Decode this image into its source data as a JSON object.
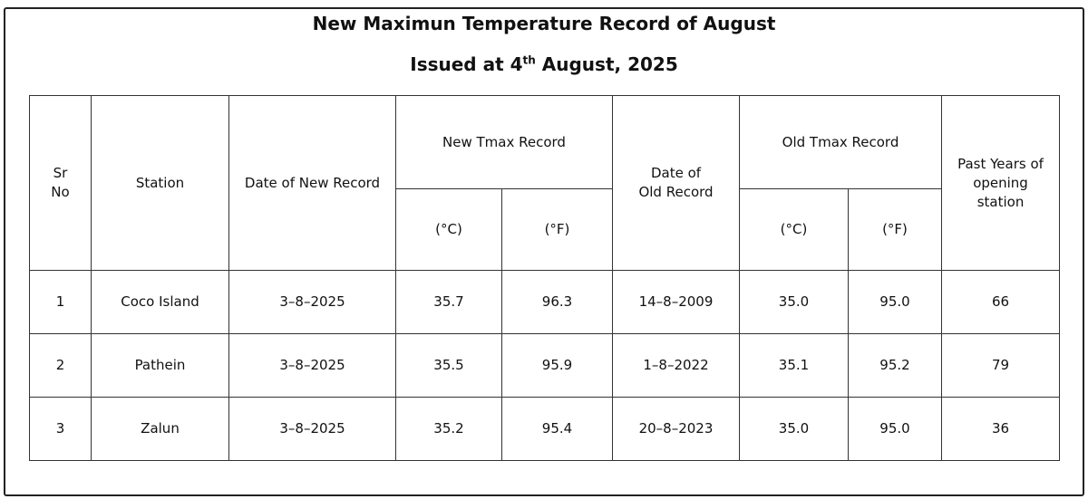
{
  "header": {
    "title": "New Maximun Temperature Record of August",
    "subtitle": {
      "parts": [
        "Issued at 4",
        "th",
        " August, 2025"
      ]
    }
  },
  "table": {
    "head_row_0": [
      [
        "Sr",
        "No"
      ],
      [
        "Station"
      ],
      [
        "Date of New Record"
      ],
      [
        "New Tmax Record"
      ],
      [
        "Date of",
        "Old Record"
      ],
      [
        "Old Tmax Record"
      ],
      [
        "Past Years of",
        "opening",
        "station"
      ]
    ],
    "head_row_1": [
      "(°C)",
      "(°F)",
      "(°C)",
      "(°F)"
    ],
    "rows": [
      [
        "1",
        "Coco Island",
        "3–8–2025",
        "35.7",
        "96.3",
        "14–8–2009",
        "35.0",
        "95.0",
        "66"
      ],
      [
        "2",
        "Pathein",
        "3–8–2025",
        "35.5",
        "95.9",
        "1–8–2022",
        "35.1",
        "95.2",
        "79"
      ],
      [
        "3",
        "Zalun",
        "3–8–2025",
        "35.2",
        "95.4",
        "20–8–2023",
        "35.0",
        "95.0",
        "36"
      ]
    ]
  }
}
